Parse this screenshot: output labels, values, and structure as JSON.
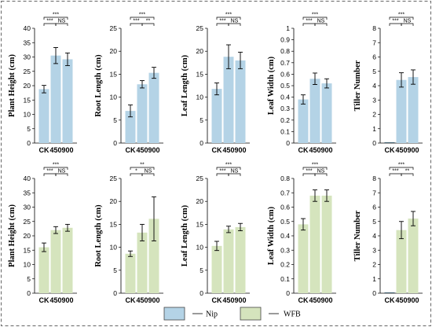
{
  "legend": [
    {
      "name": "Nip",
      "color": "#b4d3e6"
    },
    {
      "name": "WFB",
      "color": "#d5e4bd"
    }
  ],
  "chart_data": [
    {
      "type": "bar",
      "series": "Nip",
      "ylabel": "Plant Height  (cm)",
      "ylim": [
        0,
        40
      ],
      "ticks": [
        0,
        5,
        10,
        15,
        20,
        25,
        30,
        35,
        40
      ],
      "categories": [
        "CK",
        "450",
        "900"
      ],
      "values": [
        18.8,
        30.5,
        29.2
      ],
      "errors": [
        1.3,
        2.8,
        2.2
      ],
      "significance": [
        {
          "from": 0,
          "to": 1,
          "label": "***"
        },
        {
          "from": 1,
          "to": 2,
          "label": "NS"
        },
        {
          "from": 0,
          "to": 2,
          "label": "***"
        }
      ]
    },
    {
      "type": "bar",
      "series": "Nip",
      "ylabel": "Root Length  (cm)",
      "ylim": [
        0,
        25
      ],
      "ticks": [
        0,
        5,
        10,
        15,
        20,
        25
      ],
      "categories": [
        "CK",
        "450",
        "900"
      ],
      "values": [
        7.0,
        12.8,
        15.3
      ],
      "errors": [
        1.3,
        0.8,
        1.2
      ],
      "significance": [
        {
          "from": 0,
          "to": 1,
          "label": "***"
        },
        {
          "from": 1,
          "to": 2,
          "label": "**"
        },
        {
          "from": 0,
          "to": 2,
          "label": "***"
        }
      ]
    },
    {
      "type": "bar",
      "series": "Nip",
      "ylabel": "Leaf Length  (cm)",
      "ylim": [
        0,
        25
      ],
      "ticks": [
        0,
        5,
        10,
        15,
        20,
        25
      ],
      "categories": [
        "CK",
        "450",
        "900"
      ],
      "values": [
        11.8,
        18.8,
        18.0
      ],
      "errors": [
        1.3,
        2.6,
        1.8
      ],
      "significance": [
        {
          "from": 0,
          "to": 1,
          "label": "***"
        },
        {
          "from": 1,
          "to": 2,
          "label": "NS"
        },
        {
          "from": 0,
          "to": 2,
          "label": "***"
        }
      ]
    },
    {
      "type": "bar",
      "series": "Nip",
      "ylabel": "Leaf Width  (cm)",
      "ylim": [
        0,
        1
      ],
      "ticks": [
        0,
        0.1,
        0.2,
        0.3,
        0.4,
        0.5,
        0.6,
        0.7,
        0.8,
        0.9,
        1
      ],
      "tick_labels": [
        "0",
        "0.1",
        "0.2",
        "0.3",
        "0.4",
        "0.5",
        "0.6",
        "0.7",
        "0.8",
        "0.9",
        "1"
      ],
      "categories": [
        "CK",
        "450",
        "900"
      ],
      "values": [
        0.38,
        0.56,
        0.52
      ],
      "errors": [
        0.04,
        0.05,
        0.04
      ],
      "significance": [
        {
          "from": 0,
          "to": 1,
          "label": "***"
        },
        {
          "from": 1,
          "to": 2,
          "label": "NS"
        },
        {
          "from": 0,
          "to": 2,
          "label": "***"
        }
      ]
    },
    {
      "type": "bar",
      "series": "Nip",
      "ylabel": "Tiller Number",
      "ylim": [
        0,
        8
      ],
      "ticks": [
        0,
        1,
        2,
        3,
        4,
        5,
        6,
        7,
        8
      ],
      "categories": [
        "CK",
        "450",
        "900"
      ],
      "values": [
        0,
        4.4,
        4.6
      ],
      "errors": [
        0,
        0.5,
        0.5
      ],
      "significance": [
        {
          "from": 0,
          "to": 1,
          "label": "***"
        },
        {
          "from": 1,
          "to": 2,
          "label": "NS"
        },
        {
          "from": 0,
          "to": 2,
          "label": "***"
        }
      ]
    },
    {
      "type": "bar",
      "series": "WFB",
      "ylabel": "Plant Height  (cm)",
      "ylim": [
        0,
        40
      ],
      "ticks": [
        0,
        5,
        10,
        15,
        20,
        25,
        30,
        35,
        40
      ],
      "categories": [
        "CK",
        "450",
        "900"
      ],
      "values": [
        16.0,
        22.0,
        22.8
      ],
      "errors": [
        1.5,
        1.2,
        1.2
      ],
      "significance": [
        {
          "from": 0,
          "to": 1,
          "label": "***"
        },
        {
          "from": 1,
          "to": 2,
          "label": "NS"
        },
        {
          "from": 0,
          "to": 2,
          "label": "***"
        }
      ]
    },
    {
      "type": "bar",
      "series": "WFB",
      "ylabel": "Root Length  (cm)",
      "ylim": [
        0,
        25
      ],
      "ticks": [
        0,
        5,
        10,
        15,
        20,
        25
      ],
      "categories": [
        "CK",
        "450",
        "900"
      ],
      "values": [
        8.6,
        13.2,
        16.2
      ],
      "errors": [
        0.6,
        1.8,
        4.8
      ],
      "significance": [
        {
          "from": 0,
          "to": 1,
          "label": "*"
        },
        {
          "from": 1,
          "to": 2,
          "label": "NS"
        },
        {
          "from": 0,
          "to": 2,
          "label": "**"
        }
      ]
    },
    {
      "type": "bar",
      "series": "WFB",
      "ylabel": "Leaf Length  (cm)",
      "ylim": [
        0,
        25
      ],
      "ticks": [
        0,
        5,
        10,
        15,
        20,
        25
      ],
      "categories": [
        "CK",
        "450",
        "900"
      ],
      "values": [
        10.3,
        13.9,
        14.4
      ],
      "errors": [
        1.0,
        0.7,
        0.8
      ],
      "significance": [
        {
          "from": 0,
          "to": 1,
          "label": "***"
        },
        {
          "from": 1,
          "to": 2,
          "label": "NS"
        },
        {
          "from": 0,
          "to": 2,
          "label": "***"
        }
      ]
    },
    {
      "type": "bar",
      "series": "WFB",
      "ylabel": "Leaf Width  (cm)",
      "ylim": [
        0,
        0.8
      ],
      "ticks": [
        0,
        0.1,
        0.2,
        0.3,
        0.4,
        0.5,
        0.6,
        0.7,
        0.8
      ],
      "tick_labels": [
        "0",
        "0.1",
        "0.2",
        "0.3",
        "0.4",
        "0.5",
        "0.6",
        "0.7",
        "0.8"
      ],
      "categories": [
        "CK",
        "450",
        "900"
      ],
      "values": [
        0.48,
        0.68,
        0.68
      ],
      "errors": [
        0.04,
        0.04,
        0.04
      ],
      "significance": [
        {
          "from": 0,
          "to": 1,
          "label": "***"
        },
        {
          "from": 1,
          "to": 2,
          "label": "NS"
        },
        {
          "from": 0,
          "to": 2,
          "label": "***"
        }
      ]
    },
    {
      "type": "bar",
      "series": "WFB",
      "ylabel": "Tiller Number",
      "ylim": [
        0,
        8
      ],
      "ticks": [
        0,
        1,
        2,
        3,
        4,
        5,
        6,
        7,
        8
      ],
      "categories": [
        "CK",
        "450",
        "900"
      ],
      "values": [
        0,
        4.4,
        5.2
      ],
      "errors": [
        0,
        0.6,
        0.5
      ],
      "significance": [
        {
          "from": 0,
          "to": 1,
          "label": "***"
        },
        {
          "from": 1,
          "to": 2,
          "label": "**"
        },
        {
          "from": 0,
          "to": 2,
          "label": "***"
        }
      ]
    }
  ]
}
